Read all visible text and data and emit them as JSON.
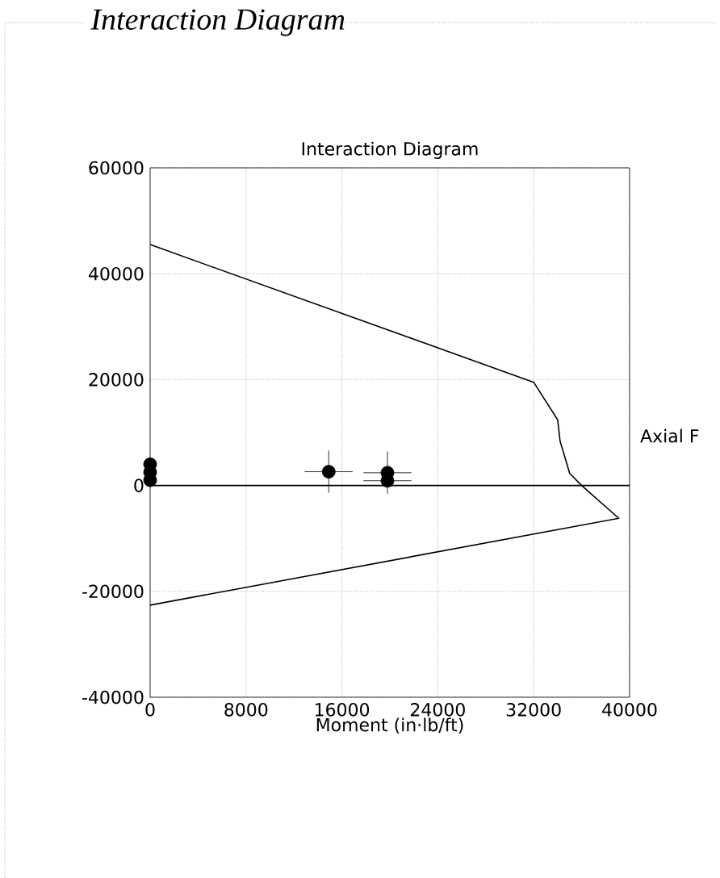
{
  "chart_data": {
    "type": "line",
    "title": "Interaction Diagram",
    "subtitle": "Interaction Diagram",
    "xlabel": "Moment (in·lb/ft)",
    "ylabel": "Axial F",
    "xlim": [
      0,
      40000
    ],
    "ylim": [
      -40000,
      60000
    ],
    "xticks": [
      0,
      8000,
      16000,
      24000,
      32000,
      40000
    ],
    "yticks": [
      -40000,
      -20000,
      0,
      20000,
      40000,
      60000
    ],
    "grid": true,
    "ref_lines": [
      {
        "axis": "y",
        "value": 0,
        "color": "#000000"
      }
    ],
    "series": [
      {
        "color": "#000000",
        "marker": "none",
        "line_style": "solid",
        "x": [
          0,
          32000,
          34000,
          34200,
          35000,
          36000,
          39100,
          0
        ],
        "values": [
          45500,
          19500,
          12400,
          8400,
          2300,
          0,
          -6200,
          -22600
        ]
      },
      {
        "type": "scatter",
        "color": "#000000",
        "marker": "circle",
        "x": [
          0,
          0,
          0,
          14900,
          19800,
          19800
        ],
        "values": [
          4000,
          2500,
          1000,
          2600,
          2400,
          900
        ],
        "errors": [
          null,
          null,
          null,
          4000,
          4000,
          null
        ],
        "xerrors": [
          null,
          null,
          null,
          2000,
          2000,
          2000
        ]
      }
    ]
  }
}
